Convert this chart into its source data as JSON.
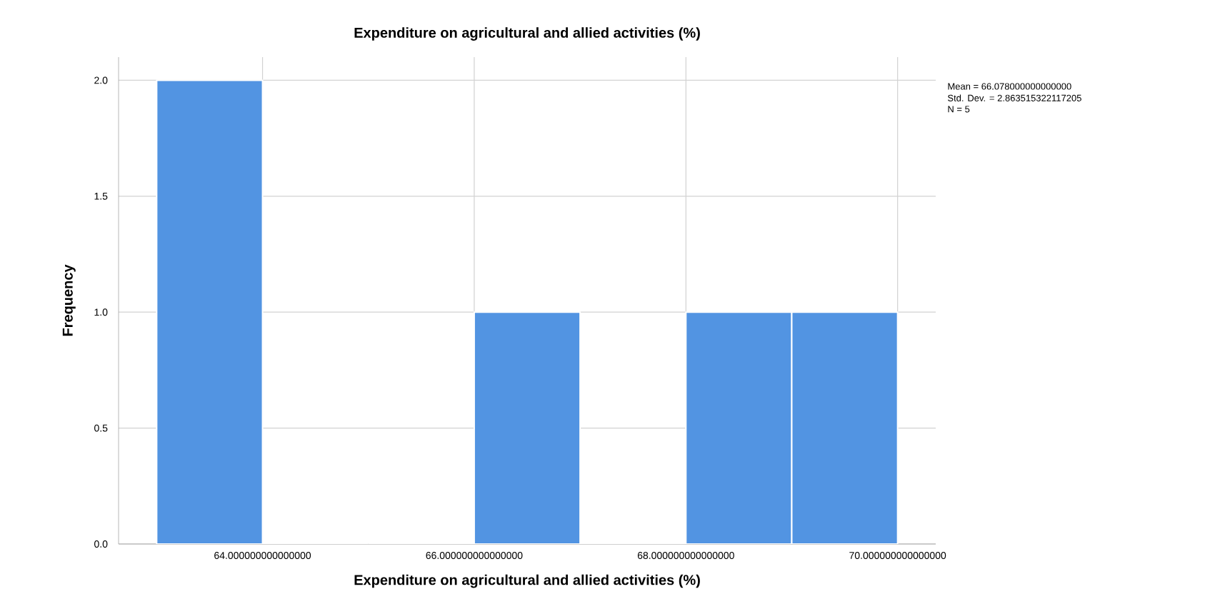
{
  "chart_data": {
    "type": "histogram",
    "title": "Expenditure on agricultural and allied activities (%)",
    "xlabel": "Expenditure on agricultural and allied activities (%)",
    "ylabel": "Frequency",
    "bins": [
      63,
      64,
      65,
      66,
      67,
      68,
      69,
      70
    ],
    "values": [
      2,
      0,
      0,
      1,
      0,
      1,
      1
    ],
    "color": "#5294e2",
    "xlim": [
      62.64,
      70.36
    ],
    "ylim": [
      0,
      2.1
    ],
    "xticks": [
      {
        "value": 64,
        "label": "64.000000000000000"
      },
      {
        "value": 66,
        "label": "66.000000000000000"
      },
      {
        "value": 68,
        "label": "68.000000000000000"
      },
      {
        "value": 70,
        "label": "70.000000000000000"
      }
    ],
    "yticks": [
      {
        "value": 0,
        "label": "0.0"
      },
      {
        "value": 0.5,
        "label": "0.5"
      },
      {
        "value": 1,
        "label": "1.0"
      },
      {
        "value": 1.5,
        "label": "1.5"
      },
      {
        "value": 2,
        "label": "2.0"
      }
    ],
    "grid": true,
    "annotations": [
      "Mean = 66.078000000000000",
      "Std. Dev. = 2.863515322117205",
      "N = 5"
    ]
  }
}
